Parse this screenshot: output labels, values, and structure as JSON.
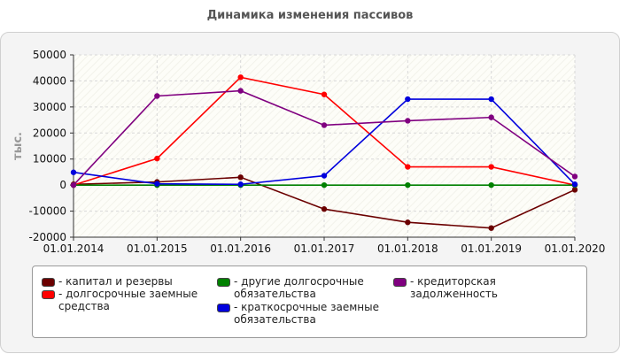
{
  "chart_data": {
    "type": "line",
    "title": "Динамика изменения пассивов",
    "ylabel": "тыс.",
    "xlabel": "",
    "categories": [
      "01.01.2014",
      "01.01.2015",
      "01.01.2016",
      "01.01.2017",
      "01.01.2018",
      "01.01.2019",
      "01.01.2020"
    ],
    "ylim": [
      -20000,
      50000
    ],
    "yticks": [
      {
        "v": 50000,
        "label": "50000"
      },
      {
        "v": 40000,
        "label": "40000"
      },
      {
        "v": 30000,
        "label": "30000"
      },
      {
        "v": 20000,
        "label": "20000"
      },
      {
        "v": 10000,
        "label": "10000"
      },
      {
        "v": 0,
        "label": "0"
      },
      {
        "v": -10000,
        "label": "-10000"
      },
      {
        "v": -20000,
        "label": "-20000"
      }
    ],
    "grid": true,
    "legend_position": "bottom",
    "series": [
      {
        "name": "капитал и резервы",
        "color": "#6b0000",
        "values": [
          300,
          1200,
          3000,
          -9200,
          -14300,
          -16500,
          -1800
        ]
      },
      {
        "name": "долгосрочные заемные средства",
        "color": "#ff0000",
        "values": [
          0,
          10200,
          41400,
          34800,
          7000,
          7000,
          0
        ]
      },
      {
        "name": "другие долгосрочные обязательства",
        "color": "#008000",
        "values": [
          0,
          0,
          0,
          0,
          0,
          0,
          0
        ]
      },
      {
        "name": "краткосрочные заемные обязательства",
        "color": "#0000dd",
        "values": [
          4900,
          500,
          300,
          3600,
          33000,
          33000,
          300
        ]
      },
      {
        "name": "кредиторская задолженность",
        "color": "#800080",
        "values": [
          0,
          34200,
          36200,
          23000,
          24700,
          26000,
          3300
        ]
      }
    ]
  },
  "legend": [
    {
      "label": "- капитал и резервы",
      "color": "#6b0000"
    },
    {
      "label": "- долгосрочные заемные\nсредства",
      "color": "#ff0000"
    },
    {
      "label": "- другие долгосрочные\nобязательства",
      "color": "#008000"
    },
    {
      "label": "- краткосрочные заемные\nобязательства",
      "color": "#0000dd"
    },
    {
      "label": "- кредиторская задолженность",
      "color": "#800080"
    }
  ]
}
